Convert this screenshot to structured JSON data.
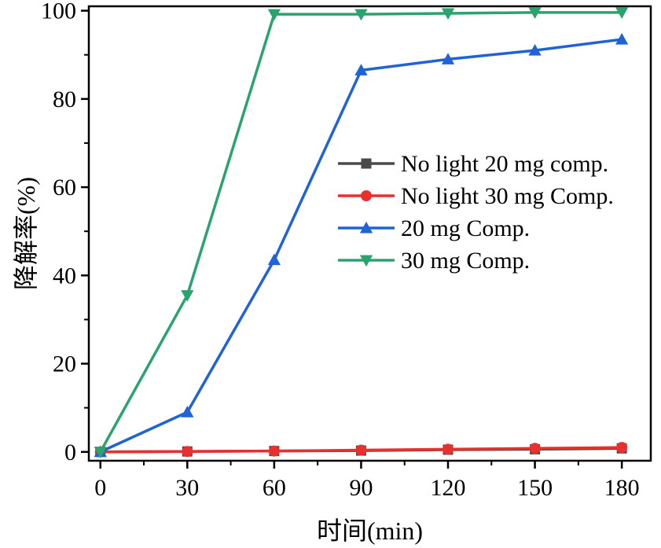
{
  "chart_data": {
    "type": "line",
    "xlabel": "时间(min)",
    "ylabel": "降解率(%)",
    "xlim": [
      -4,
      190
    ],
    "ylim": [
      -2,
      101
    ],
    "xticks": [
      0,
      30,
      60,
      90,
      120,
      150,
      180
    ],
    "yticks": [
      0,
      20,
      40,
      60,
      80,
      100
    ],
    "x": [
      0,
      30,
      60,
      90,
      120,
      150,
      180
    ],
    "legend_position": "right-center",
    "series": [
      {
        "name": "No light 20 mg comp.",
        "marker": "square",
        "color": "#4a4a4a",
        "values": [
          0,
          0.1,
          0.2,
          0.3,
          0.5,
          0.6,
          0.8
        ]
      },
      {
        "name": "No light 30 mg Comp.",
        "marker": "circle",
        "color": "#e8302f",
        "values": [
          0,
          0.1,
          0.2,
          0.4,
          0.6,
          0.8,
          1.0
        ]
      },
      {
        "name": "20 mg Comp.",
        "marker": "triangle-up",
        "color": "#1f63d6",
        "values": [
          0,
          9,
          43.5,
          86.5,
          89,
          91,
          93.5
        ]
      },
      {
        "name": "30 mg Comp.",
        "marker": "triangle-down",
        "color": "#2ba36e",
        "values": [
          0,
          35.5,
          99.2,
          99.2,
          99.4,
          99.6,
          99.6
        ]
      }
    ]
  }
}
